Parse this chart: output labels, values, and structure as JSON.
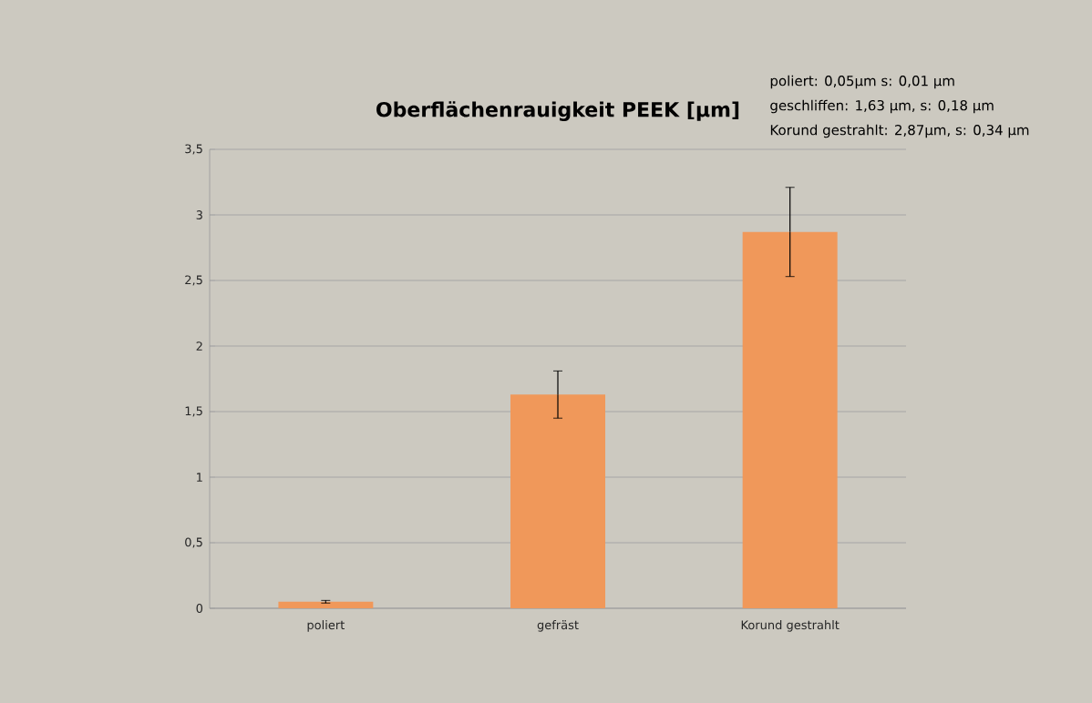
{
  "chart_data": {
    "type": "bar",
    "title": "Oberflächenrauigkeit PEEK [µm]",
    "categories": [
      "poliert",
      "gefräst",
      "Korund gestrahlt"
    ],
    "values": [
      0.05,
      1.63,
      2.87
    ],
    "errors": [
      0.01,
      0.18,
      0.34
    ],
    "color": "#f0985a",
    "ylim": [
      0,
      3.5
    ],
    "yticks": [
      0,
      {
        "value": 0.5,
        "label": "0,5"
      },
      1,
      {
        "value": 1.5,
        "label": "1,5"
      },
      2,
      {
        "value": 2.5,
        "label": "2,5"
      },
      3,
      {
        "value": 3.5,
        "label": "3,5"
      }
    ],
    "grid": "y",
    "annotations": [
      "poliert: 0,05µm s: 0,01 µm",
      "geschliffen: 1,63 µm,  s: 0,18 µm",
      "Korund gestrahlt: 2,87µm, s: 0,34 µm"
    ]
  }
}
